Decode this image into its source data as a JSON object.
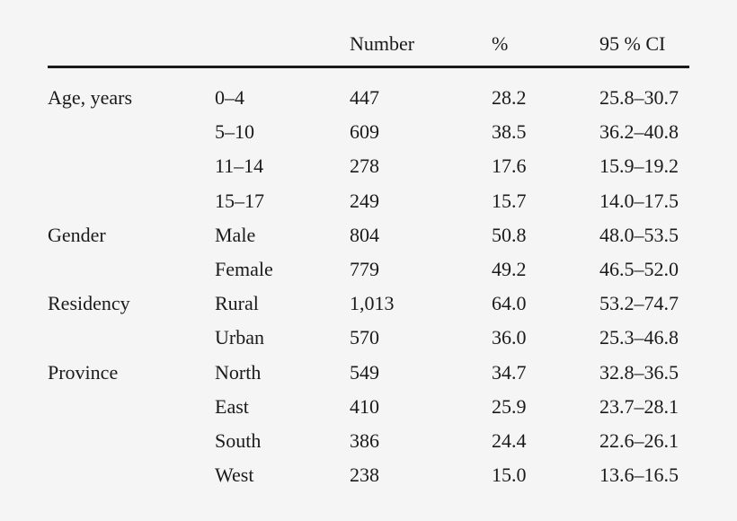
{
  "table": {
    "headers": {
      "group": "",
      "sub": "",
      "number": "Number",
      "pct": "%",
      "ci": "95 % CI"
    },
    "rows": [
      {
        "group": "Age, years",
        "sub": "0–4",
        "number": "447",
        "pct": "28.2",
        "ci": "25.8–30.7"
      },
      {
        "group": "",
        "sub": "5–10",
        "number": "609",
        "pct": "38.5",
        "ci": "36.2–40.8"
      },
      {
        "group": "",
        "sub": "11–14",
        "number": "278",
        "pct": "17.6",
        "ci": "15.9–19.2"
      },
      {
        "group": "",
        "sub": "15–17",
        "number": "249",
        "pct": "15.7",
        "ci": "14.0–17.5"
      },
      {
        "group": "Gender",
        "sub": "Male",
        "number": "804",
        "pct": "50.8",
        "ci": "48.0–53.5"
      },
      {
        "group": "",
        "sub": "Female",
        "number": "779",
        "pct": "49.2",
        "ci": "46.5–52.0"
      },
      {
        "group": "Residency",
        "sub": "Rural",
        "number": "1,013",
        "pct": "64.0",
        "ci": "53.2–74.7"
      },
      {
        "group": "",
        "sub": "Urban",
        "number": "570",
        "pct": "36.0",
        "ci": "25.3–46.8"
      },
      {
        "group": "Province",
        "sub": "North",
        "number": "549",
        "pct": "34.7",
        "ci": "32.8–36.5"
      },
      {
        "group": "",
        "sub": "East",
        "number": "410",
        "pct": "25.9",
        "ci": "23.7–28.1"
      },
      {
        "group": "",
        "sub": "South",
        "number": "386",
        "pct": "24.4",
        "ci": "22.6–26.1"
      },
      {
        "group": "",
        "sub": "West",
        "number": "238",
        "pct": "15.0",
        "ci": "13.6–16.5"
      }
    ]
  }
}
